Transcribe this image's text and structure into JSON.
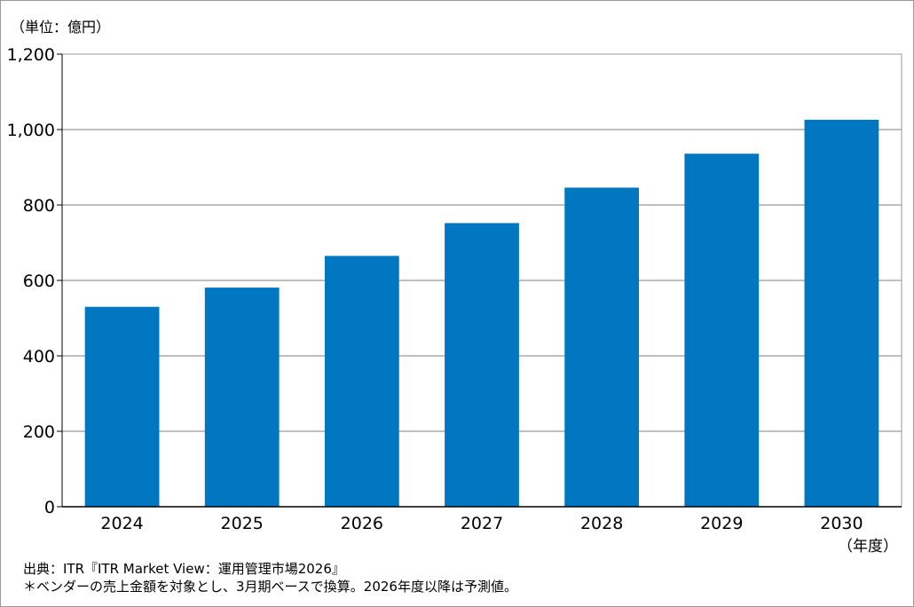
{
  "chart_data": {
    "type": "bar",
    "unit_label": "（単位：億円）",
    "x_unit_label": "（年度）",
    "categories": [
      "2024",
      "2025",
      "2026",
      "2027",
      "2028",
      "2029",
      "2030"
    ],
    "values": [
      530,
      581,
      665,
      752,
      846,
      936,
      1026
    ],
    "ylim": [
      0,
      1200
    ],
    "yticks": [
      0,
      200,
      400,
      600,
      800,
      1000,
      1200
    ],
    "ytick_labels": [
      "0",
      "200",
      "400",
      "600",
      "800",
      "1,000",
      "1,200"
    ],
    "grid": true,
    "legend": "none",
    "bar_color": "#0077c0",
    "grid_color": "#aaaaaa"
  },
  "notes": {
    "source": "出典：ITR『ITR Market View：運用管理市場2026』",
    "footnote": "＊ベンダーの売上金額を対象とし、3月期ベースで換算。2026年度以降は予測値。"
  }
}
